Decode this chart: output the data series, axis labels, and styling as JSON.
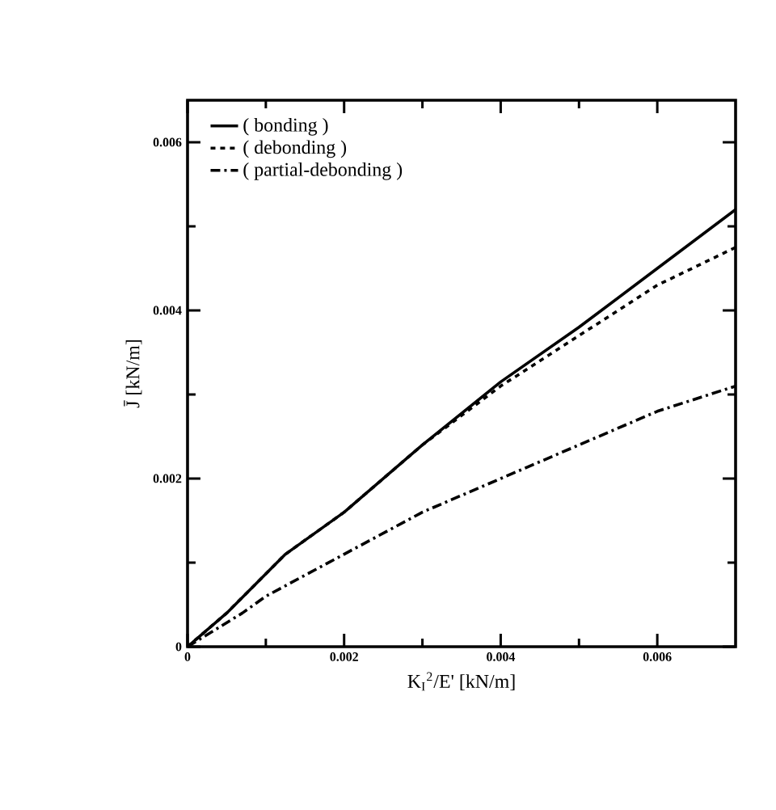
{
  "chart_data": {
    "type": "line",
    "xlabel": "K$_{I}$$^{2}$/E' [kN/m]",
    "ylabel": "J̄ [kN/m]",
    "xlim": [
      0,
      0.007
    ],
    "ylim": [
      0,
      0.0065
    ],
    "xticks": [
      0,
      0.002,
      0.004,
      0.006
    ],
    "yticks": [
      0,
      0.002,
      0.004,
      0.006
    ],
    "grid": false,
    "legend": "top left",
    "series": [
      {
        "name": "( bonding )",
        "color": "#000000",
        "line_style": "solid",
        "x": [
          0,
          0.0005,
          0.00125,
          0.002,
          0.003,
          0.004,
          0.005,
          0.006,
          0.007
        ],
        "values": [
          0,
          0.0004,
          0.0011,
          0.0016,
          0.0024,
          0.00315,
          0.0038,
          0.0045,
          0.0052
        ]
      },
      {
        "name": "( debonding )",
        "color": "#000000",
        "line_style": "dashed",
        "x": [
          0,
          0.0005,
          0.00125,
          0.002,
          0.003,
          0.004,
          0.005,
          0.006,
          0.007
        ],
        "values": [
          0,
          0.0004,
          0.0011,
          0.0016,
          0.0024,
          0.0031,
          0.0037,
          0.0043,
          0.00475
        ]
      },
      {
        "name": "( partial-debonding )",
        "color": "#000000",
        "line_style": "dashdot",
        "x": [
          0,
          0.0007,
          0.001,
          0.002,
          0.003,
          0.004,
          0.005,
          0.006,
          0.007
        ],
        "values": [
          0,
          0.0004,
          0.0006,
          0.0011,
          0.0016,
          0.002,
          0.0024,
          0.0028,
          0.0031
        ]
      }
    ]
  }
}
